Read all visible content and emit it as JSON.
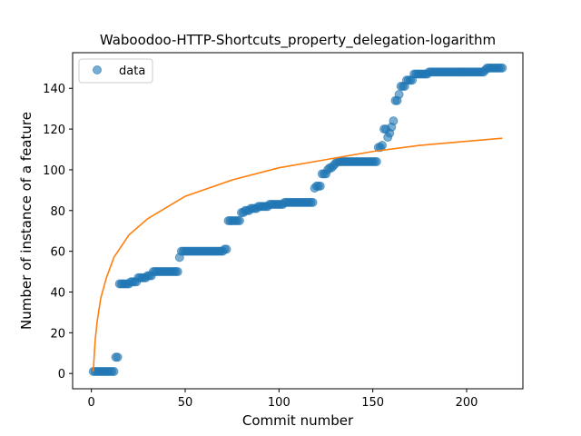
{
  "chart_data": {
    "type": "scatter",
    "title": "Waboodoo-HTTP-Shortcuts_property_delegation-logarithm",
    "xlabel": "Commit number",
    "ylabel": "Number of instance of a feature",
    "xlim": [
      -10,
      230
    ],
    "ylim": [
      -7.5,
      157.5
    ],
    "xticks": [
      0,
      50,
      100,
      150,
      200
    ],
    "yticks": [
      0,
      20,
      40,
      60,
      80,
      100,
      120,
      140
    ],
    "legend": {
      "position": "top-left",
      "entries": [
        "data"
      ]
    },
    "grid": false,
    "colors": {
      "data": "#1f77b4",
      "fit": "#ff7f0e"
    },
    "series": [
      {
        "name": "data",
        "kind": "scatter",
        "points": [
          [
            1,
            1
          ],
          [
            2,
            1
          ],
          [
            3,
            1
          ],
          [
            4,
            1
          ],
          [
            5,
            1
          ],
          [
            6,
            1
          ],
          [
            7,
            1
          ],
          [
            8,
            1
          ],
          [
            9,
            1
          ],
          [
            10,
            1
          ],
          [
            11,
            1
          ],
          [
            12,
            1
          ],
          [
            13,
            8
          ],
          [
            14,
            8
          ],
          [
            15,
            44
          ],
          [
            16,
            44
          ],
          [
            17,
            44
          ],
          [
            18,
            44
          ],
          [
            19,
            44
          ],
          [
            20,
            44
          ],
          [
            21,
            45
          ],
          [
            22,
            45
          ],
          [
            23,
            45
          ],
          [
            24,
            45
          ],
          [
            25,
            47
          ],
          [
            26,
            47
          ],
          [
            27,
            47
          ],
          [
            28,
            47
          ],
          [
            29,
            47
          ],
          [
            30,
            48
          ],
          [
            31,
            48
          ],
          [
            32,
            48
          ],
          [
            33,
            50
          ],
          [
            34,
            50
          ],
          [
            35,
            50
          ],
          [
            36,
            50
          ],
          [
            37,
            50
          ],
          [
            38,
            50
          ],
          [
            39,
            50
          ],
          [
            40,
            50
          ],
          [
            41,
            50
          ],
          [
            42,
            50
          ],
          [
            43,
            50
          ],
          [
            44,
            50
          ],
          [
            45,
            50
          ],
          [
            46,
            50
          ],
          [
            47,
            57
          ],
          [
            48,
            60
          ],
          [
            49,
            60
          ],
          [
            50,
            60
          ],
          [
            51,
            60
          ],
          [
            52,
            60
          ],
          [
            53,
            60
          ],
          [
            54,
            60
          ],
          [
            55,
            60
          ],
          [
            56,
            60
          ],
          [
            57,
            60
          ],
          [
            58,
            60
          ],
          [
            59,
            60
          ],
          [
            60,
            60
          ],
          [
            61,
            60
          ],
          [
            62,
            60
          ],
          [
            63,
            60
          ],
          [
            64,
            60
          ],
          [
            65,
            60
          ],
          [
            66,
            60
          ],
          [
            67,
            60
          ],
          [
            68,
            60
          ],
          [
            69,
            60
          ],
          [
            70,
            60
          ],
          [
            71,
            61
          ],
          [
            72,
            61
          ],
          [
            73,
            75
          ],
          [
            74,
            75
          ],
          [
            75,
            75
          ],
          [
            76,
            75
          ],
          [
            77,
            75
          ],
          [
            78,
            75
          ],
          [
            79,
            75
          ],
          [
            80,
            79
          ],
          [
            81,
            79
          ],
          [
            82,
            80
          ],
          [
            83,
            80
          ],
          [
            84,
            80
          ],
          [
            85,
            81
          ],
          [
            86,
            81
          ],
          [
            87,
            81
          ],
          [
            88,
            81
          ],
          [
            89,
            82
          ],
          [
            90,
            82
          ],
          [
            91,
            82
          ],
          [
            92,
            82
          ],
          [
            93,
            82
          ],
          [
            94,
            82
          ],
          [
            95,
            83
          ],
          [
            96,
            83
          ],
          [
            97,
            83
          ],
          [
            98,
            83
          ],
          [
            99,
            83
          ],
          [
            100,
            83
          ],
          [
            101,
            83
          ],
          [
            102,
            83
          ],
          [
            103,
            84
          ],
          [
            104,
            84
          ],
          [
            105,
            84
          ],
          [
            106,
            84
          ],
          [
            107,
            84
          ],
          [
            108,
            84
          ],
          [
            109,
            84
          ],
          [
            110,
            84
          ],
          [
            111,
            84
          ],
          [
            112,
            84
          ],
          [
            113,
            84
          ],
          [
            114,
            84
          ],
          [
            115,
            84
          ],
          [
            116,
            84
          ],
          [
            117,
            84
          ],
          [
            118,
            84
          ],
          [
            119,
            91
          ],
          [
            120,
            92
          ],
          [
            121,
            92
          ],
          [
            122,
            92
          ],
          [
            123,
            98
          ],
          [
            124,
            98
          ],
          [
            125,
            98
          ],
          [
            126,
            100
          ],
          [
            127,
            101
          ],
          [
            128,
            101
          ],
          [
            129,
            102
          ],
          [
            130,
            103
          ],
          [
            131,
            104
          ],
          [
            132,
            104
          ],
          [
            133,
            104
          ],
          [
            134,
            104
          ],
          [
            135,
            104
          ],
          [
            136,
            104
          ],
          [
            137,
            104
          ],
          [
            138,
            104
          ],
          [
            139,
            104
          ],
          [
            140,
            104
          ],
          [
            141,
            104
          ],
          [
            142,
            104
          ],
          [
            143,
            104
          ],
          [
            144,
            104
          ],
          [
            145,
            104
          ],
          [
            146,
            104
          ],
          [
            147,
            104
          ],
          [
            148,
            104
          ],
          [
            149,
            104
          ],
          [
            150,
            104
          ],
          [
            151,
            104
          ],
          [
            152,
            104
          ],
          [
            153,
            111
          ],
          [
            154,
            111
          ],
          [
            155,
            112
          ],
          [
            156,
            120
          ],
          [
            157,
            120
          ],
          [
            158,
            116
          ],
          [
            159,
            118
          ],
          [
            160,
            121
          ],
          [
            161,
            124
          ],
          [
            162,
            134
          ],
          [
            163,
            134
          ],
          [
            164,
            137
          ],
          [
            165,
            141
          ],
          [
            166,
            141
          ],
          [
            167,
            141
          ],
          [
            168,
            144
          ],
          [
            169,
            144
          ],
          [
            170,
            144
          ],
          [
            171,
            144
          ],
          [
            172,
            147
          ],
          [
            173,
            147
          ],
          [
            174,
            147
          ],
          [
            175,
            147
          ],
          [
            176,
            147
          ],
          [
            177,
            147
          ],
          [
            178,
            147
          ],
          [
            179,
            147
          ],
          [
            180,
            148
          ],
          [
            181,
            148
          ],
          [
            182,
            148
          ],
          [
            183,
            148
          ],
          [
            184,
            148
          ],
          [
            185,
            148
          ],
          [
            186,
            148
          ],
          [
            187,
            148
          ],
          [
            188,
            148
          ],
          [
            189,
            148
          ],
          [
            190,
            148
          ],
          [
            191,
            148
          ],
          [
            192,
            148
          ],
          [
            193,
            148
          ],
          [
            194,
            148
          ],
          [
            195,
            148
          ],
          [
            196,
            148
          ],
          [
            197,
            148
          ],
          [
            198,
            148
          ],
          [
            199,
            148
          ],
          [
            200,
            148
          ],
          [
            201,
            148
          ],
          [
            202,
            148
          ],
          [
            203,
            148
          ],
          [
            204,
            148
          ],
          [
            205,
            148
          ],
          [
            206,
            148
          ],
          [
            207,
            148
          ],
          [
            208,
            148
          ],
          [
            209,
            148
          ],
          [
            210,
            149
          ],
          [
            211,
            150
          ],
          [
            212,
            150
          ],
          [
            213,
            150
          ],
          [
            214,
            150
          ],
          [
            215,
            150
          ],
          [
            216,
            150
          ],
          [
            217,
            150
          ],
          [
            218,
            150
          ],
          [
            219,
            150
          ]
        ]
      },
      {
        "kind": "line",
        "function": "logarithm",
        "x_range": [
          1,
          219
        ],
        "points": [
          [
            1,
            1
          ],
          [
            2,
            16
          ],
          [
            3,
            25
          ],
          [
            5,
            37
          ],
          [
            8,
            47
          ],
          [
            12,
            57
          ],
          [
            20,
            68
          ],
          [
            30,
            76
          ],
          [
            50,
            87
          ],
          [
            75,
            95
          ],
          [
            100,
            101
          ],
          [
            125,
            105
          ],
          [
            150,
            109
          ],
          [
            175,
            112
          ],
          [
            200,
            114
          ],
          [
            219,
            115.5
          ]
        ]
      }
    ]
  }
}
